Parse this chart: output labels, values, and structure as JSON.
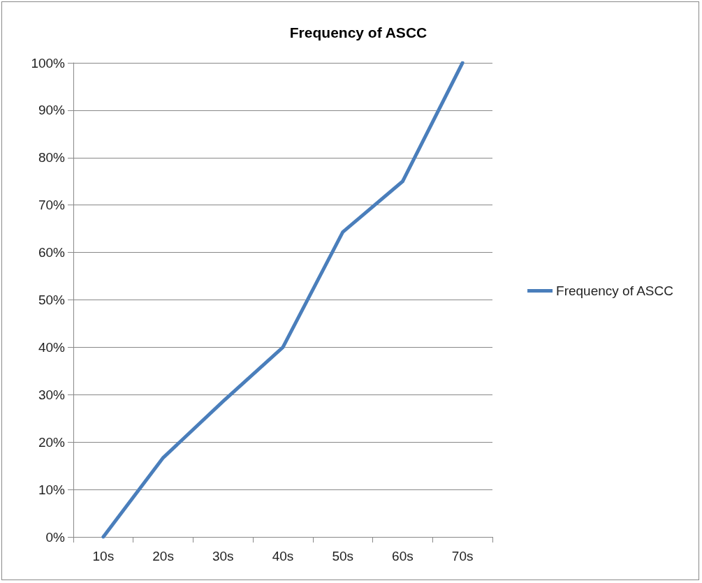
{
  "chart_data": {
    "type": "line",
    "title": "Frequency of ASCC",
    "categories": [
      "10s",
      "20s",
      "30s",
      "40s",
      "50s",
      "60s",
      "70s"
    ],
    "series": [
      {
        "name": "Frequency of ASCC",
        "color": "#4a7ebb",
        "values": [
          0,
          16.7,
          28.6,
          40,
          64.3,
          75,
          100
        ]
      }
    ],
    "ylim": [
      0,
      100
    ],
    "yticks": [
      {
        "value": 0,
        "label": "0%"
      },
      {
        "value": 10,
        "label": "10%"
      },
      {
        "value": 20,
        "label": "20%"
      },
      {
        "value": 30,
        "label": "30%"
      },
      {
        "value": 40,
        "label": "40%"
      },
      {
        "value": 50,
        "label": "50%"
      },
      {
        "value": 60,
        "label": "60%"
      },
      {
        "value": 70,
        "label": "70%"
      },
      {
        "value": 80,
        "label": "80%"
      },
      {
        "value": 90,
        "label": "90%"
      },
      {
        "value": 100,
        "label": "100%"
      }
    ],
    "grid": "y",
    "legend": "right",
    "marker": "none",
    "line_style": "solid"
  }
}
